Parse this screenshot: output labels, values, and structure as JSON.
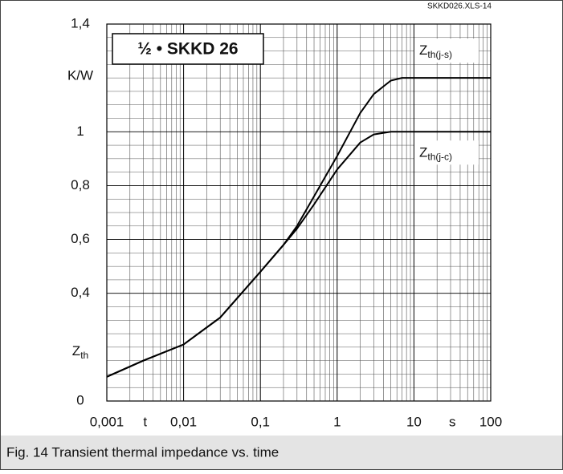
{
  "chart_data": {
    "type": "line",
    "title": "½ • SKKD 26",
    "source": "SKKD026.XLS-14",
    "caption": "Fig. 14 Transient thermal impedance vs. time",
    "xlabel": "t",
    "xunit": "s",
    "ylabel": {
      "symbol": "Z",
      "subscript": "th"
    },
    "yunit": "K/W",
    "log_x": true,
    "grid": true,
    "x": [
      0.001,
      0.003,
      0.01,
      0.03,
      0.1,
      0.2,
      0.3,
      0.5,
      1,
      2,
      3,
      5,
      7,
      10,
      100
    ],
    "series": [
      {
        "name": "Z",
        "subscript": "th(j-s)",
        "color": "#000000",
        "values": [
          0.09,
          0.15,
          0.21,
          0.31,
          0.48,
          0.58,
          0.65,
          0.76,
          0.91,
          1.07,
          1.14,
          1.19,
          1.2,
          1.2,
          1.2
        ]
      },
      {
        "name": "Z",
        "subscript": "th(j-c)",
        "color": "#000000",
        "values": [
          0.09,
          0.15,
          0.21,
          0.31,
          0.48,
          0.58,
          0.64,
          0.73,
          0.86,
          0.96,
          0.99,
          1.0,
          1.0,
          1.0,
          1.0
        ]
      }
    ],
    "xlim": [
      0.001,
      100
    ],
    "xticks": [
      {
        "value": 0.001,
        "label": "0,001"
      },
      {
        "value": 0.01,
        "label": "0,01"
      },
      {
        "value": 0.1,
        "label": "0,1"
      },
      1,
      10,
      100
    ],
    "ylim": [
      0,
      1.4
    ],
    "yticks": [
      0,
      {
        "value": 0.4,
        "label": "0,4"
      },
      {
        "value": 0.6,
        "label": "0,6"
      },
      {
        "value": 0.8,
        "label": "0,8"
      },
      1,
      {
        "value": 1.4,
        "label": "1,4"
      }
    ]
  }
}
